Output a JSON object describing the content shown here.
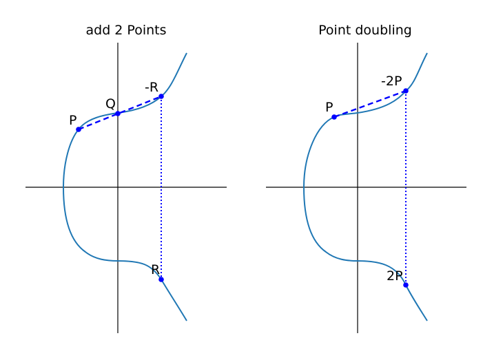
{
  "colors": {
    "curve": "#1f77b4",
    "construction": "#0000ff",
    "axes": "#000000",
    "background": "#ffffff"
  },
  "panels": [
    {
      "title": "add 2 Points",
      "labels": {
        "P": "P",
        "Q": "Q",
        "negR": "-R",
        "R": "R"
      }
    },
    {
      "title": "Point doubling",
      "labels": {
        "P": "P",
        "neg2P": "-2P",
        "twoP": "2P"
      }
    }
  ]
}
